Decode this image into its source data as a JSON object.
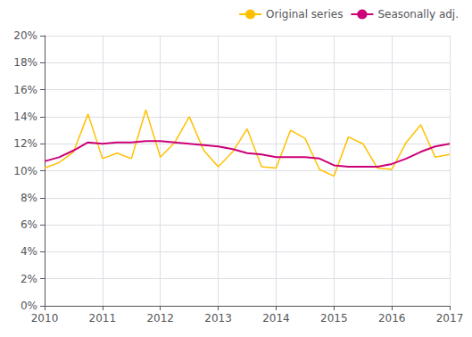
{
  "chart_data": {
    "type": "line",
    "x": [
      2010.0,
      2010.25,
      2010.5,
      2010.75,
      2011.0,
      2011.25,
      2011.5,
      2011.75,
      2012.0,
      2012.25,
      2012.5,
      2012.75,
      2013.0,
      2013.25,
      2013.5,
      2013.75,
      2014.0,
      2014.25,
      2014.5,
      2014.75,
      2015.0,
      2015.25,
      2015.5,
      2015.75,
      2016.0,
      2016.25,
      2016.5,
      2016.75,
      2017.0
    ],
    "series": [
      {
        "name": "Original series",
        "color": "#FFC000",
        "values": [
          0.102,
          0.106,
          0.114,
          0.142,
          0.109,
          0.113,
          0.109,
          0.145,
          0.11,
          0.121,
          0.14,
          0.115,
          0.103,
          0.114,
          0.131,
          0.103,
          0.102,
          0.13,
          0.124,
          0.101,
          0.096,
          0.125,
          0.12,
          0.102,
          0.101,
          0.121,
          0.134,
          0.11,
          0.112
        ]
      },
      {
        "name": "Seasonally adj.",
        "color": "#CC0077",
        "values": [
          0.107,
          0.11,
          0.115,
          0.121,
          0.12,
          0.121,
          0.121,
          0.122,
          0.122,
          0.121,
          0.12,
          0.119,
          0.118,
          0.116,
          0.113,
          0.112,
          0.11,
          0.11,
          0.11,
          0.109,
          0.104,
          0.103,
          0.103,
          0.103,
          0.105,
          0.109,
          0.114,
          0.118,
          0.12
        ]
      }
    ],
    "xlim": [
      2010,
      2017
    ],
    "xticks": [
      2010,
      2011,
      2012,
      2013,
      2014,
      2015,
      2016,
      2017
    ],
    "ylim": [
      0.0,
      0.2
    ],
    "yticks": [
      {
        "value": 0.0,
        "label": "0%"
      },
      {
        "value": 0.02,
        "label": "2%"
      },
      {
        "value": 0.04,
        "label": "4%"
      },
      {
        "value": 0.06,
        "label": "6%"
      },
      {
        "value": 0.08,
        "label": "8%"
      },
      {
        "value": 0.1,
        "label": "10%"
      },
      {
        "value": 0.12,
        "label": "12%"
      },
      {
        "value": 0.14,
        "label": "14%"
      },
      {
        "value": 0.16,
        "label": "16%"
      },
      {
        "value": 0.18,
        "label": "18%"
      },
      {
        "value": 0.2,
        "label": "20%"
      }
    ],
    "grid": true,
    "legend": "upper right"
  }
}
